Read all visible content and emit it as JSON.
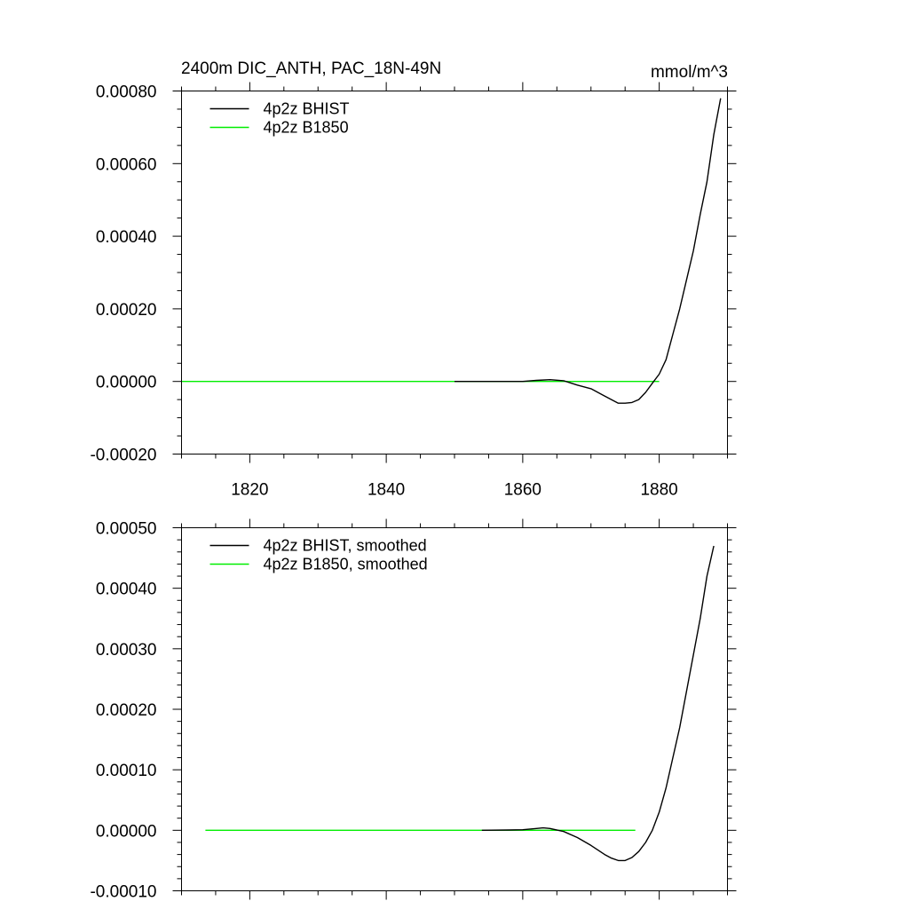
{
  "chart_data": [
    {
      "type": "line",
      "title": "2400m DIC_ANTH, PAC_18N-49N",
      "units_label": "mmol/m^3",
      "xlim": [
        1810,
        1890
      ],
      "ylim": [
        -0.0002,
        0.0008
      ],
      "x_ticks": [
        1820,
        1840,
        1860,
        1880
      ],
      "x_tick_labels": [
        "1820",
        "1840",
        "1860",
        "1880"
      ],
      "y_ticks": [
        -0.0002,
        0.0,
        0.0002,
        0.0004,
        0.0006,
        0.0008
      ],
      "y_tick_labels": [
        "-0.00020",
        "0.00000",
        "0.00020",
        "0.00040",
        "0.00060",
        "0.00080"
      ],
      "legend_position": "top-left",
      "series": [
        {
          "name": "4p2z BHIST",
          "color": "#000000",
          "x": [
            1850,
            1855,
            1860,
            1862,
            1864,
            1866,
            1868,
            1870,
            1872,
            1874,
            1875,
            1876,
            1877,
            1878,
            1879,
            1880,
            1881,
            1882,
            1883,
            1884,
            1885,
            1886,
            1887,
            1888,
            1889
          ],
          "y": [
            0.0,
            0.0,
            0.0,
            3e-06,
            5e-06,
            2e-06,
            -1e-05,
            -2e-05,
            -4e-05,
            -6e-05,
            -6e-05,
            -5.8e-05,
            -5e-05,
            -3e-05,
            -5e-06,
            2e-05,
            6e-05,
            0.00013,
            0.0002,
            0.00028,
            0.00036,
            0.00046,
            0.00055,
            0.00068,
            0.00078
          ]
        },
        {
          "name": "4p2z B1850",
          "color": "#00ee00",
          "x": [
            1810,
            1820,
            1830,
            1840,
            1850,
            1860,
            1870,
            1880
          ],
          "y": [
            0,
            0,
            0,
            0,
            0,
            0,
            0,
            0
          ]
        }
      ]
    },
    {
      "type": "line",
      "xlim": [
        1810,
        1890
      ],
      "ylim": [
        -0.0001,
        0.0005
      ],
      "x_ticks": [
        1820,
        1840,
        1860,
        1880
      ],
      "y_ticks": [
        -0.0001,
        0.0,
        0.0001,
        0.0002,
        0.0003,
        0.0004,
        0.0005
      ],
      "y_tick_labels": [
        "-0.00010",
        "0.00000",
        "0.00010",
        "0.00020",
        "0.00030",
        "0.00040",
        "0.00050"
      ],
      "legend_position": "top-left",
      "series": [
        {
          "name": "4p2z BHIST, smoothed",
          "color": "#000000",
          "x": [
            1854,
            1858,
            1860,
            1862,
            1863,
            1864,
            1866,
            1868,
            1870,
            1872,
            1873,
            1874,
            1875,
            1876,
            1877,
            1878,
            1879,
            1880,
            1881,
            1882,
            1883,
            1884,
            1885,
            1886,
            1887,
            1888
          ],
          "y": [
            0.0,
            5e-07,
            1e-06,
            3e-06,
            4e-06,
            3e-06,
            -2e-06,
            -1.2e-05,
            -2.5e-05,
            -4e-05,
            -4.6e-05,
            -5e-05,
            -5e-05,
            -4.5e-05,
            -3.5e-05,
            -2e-05,
            0.0,
            3e-05,
            7e-05,
            0.00012,
            0.00017,
            0.00023,
            0.00029,
            0.00035,
            0.00042,
            0.00047
          ]
        },
        {
          "name": "4p2z B1850, smoothed",
          "color": "#00ee00",
          "x": [
            1813.5,
            1820,
            1830,
            1840,
            1850,
            1860,
            1870,
            1876.5
          ],
          "y": [
            0,
            0,
            0,
            0,
            0,
            0,
            0,
            0
          ]
        }
      ]
    }
  ]
}
